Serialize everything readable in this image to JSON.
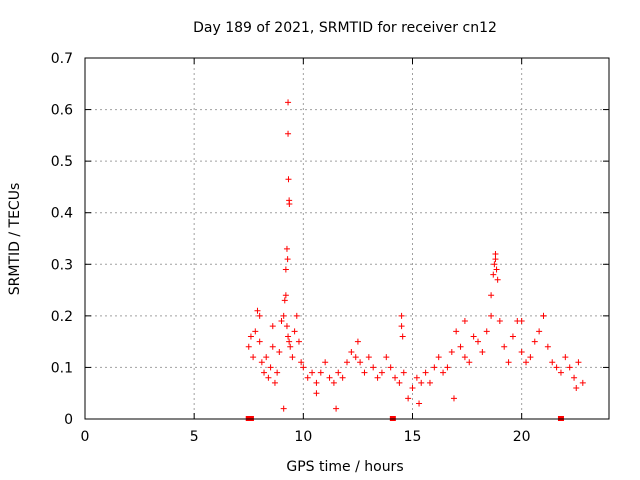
{
  "chart_data": {
    "type": "scatter",
    "title": "Day 189 of 2021, SRMTID for receiver cn12",
    "xlabel": "GPS time / hours",
    "ylabel": "SRMTID / TECUs",
    "xlim": [
      0,
      24
    ],
    "ylim": [
      0,
      0.7
    ],
    "xticks": [
      0,
      5,
      10,
      15,
      20
    ],
    "yticks": [
      0,
      0.1,
      0.2,
      0.3,
      0.4,
      0.5,
      0.6,
      0.7
    ],
    "xtick_labels": [
      "0",
      "5",
      "10",
      "15",
      "20"
    ],
    "ytick_labels": [
      "0",
      "0.1",
      "0.2",
      "0.3",
      "0.4",
      "0.5",
      "0.6",
      "0.7"
    ],
    "grid": true,
    "marker": "+",
    "color": "#ff0000",
    "series": [
      {
        "name": "SRMTID",
        "x": [
          7.5,
          7.6,
          7.7,
          7.8,
          7.9,
          8.0,
          8.1,
          8.2,
          8.3,
          8.4,
          8.5,
          8.6,
          8.7,
          8.8,
          8.9,
          9.0,
          9.1,
          9.15,
          9.2,
          9.25,
          9.3,
          9.35,
          9.4,
          9.5,
          9.6,
          9.7,
          9.8,
          9.9,
          10.0,
          10.2,
          10.4,
          10.6,
          10.8,
          11.0,
          11.2,
          11.4,
          11.6,
          11.8,
          12.0,
          12.2,
          12.4,
          12.6,
          12.8,
          13.0,
          13.2,
          13.4,
          13.6,
          13.8,
          14.0,
          14.2,
          14.4,
          14.5,
          14.6,
          14.8,
          15.0,
          15.2,
          15.4,
          15.6,
          15.8,
          16.0,
          16.2,
          16.4,
          16.6,
          16.8,
          17.0,
          17.2,
          17.4,
          17.6,
          17.8,
          18.0,
          18.2,
          18.4,
          18.6,
          18.7,
          18.8,
          18.9,
          19.0,
          19.2,
          19.4,
          19.6,
          19.8,
          20.0,
          20.2,
          20.4,
          20.6,
          20.8,
          21.0,
          21.2,
          21.4,
          21.6,
          21.8,
          22.0,
          22.2,
          22.4,
          22.6,
          22.8,
          9.3,
          9.3,
          9.32,
          9.35,
          9.36,
          9.25,
          9.2,
          9.28,
          8.0,
          9.1,
          18.8,
          18.75,
          18.85,
          18.6,
          14.5,
          14.55,
          17.4,
          21.0,
          20.0,
          16.9,
          11.5,
          10.6,
          22.5,
          15.3,
          8.6,
          12.5
        ],
        "y": [
          0.14,
          0.16,
          0.12,
          0.17,
          0.21,
          0.15,
          0.11,
          0.09,
          0.12,
          0.08,
          0.1,
          0.14,
          0.07,
          0.09,
          0.13,
          0.19,
          0.2,
          0.23,
          0.24,
          0.18,
          0.16,
          0.15,
          0.14,
          0.12,
          0.17,
          0.2,
          0.15,
          0.11,
          0.1,
          0.08,
          0.09,
          0.07,
          0.09,
          0.11,
          0.08,
          0.07,
          0.09,
          0.08,
          0.11,
          0.13,
          0.12,
          0.11,
          0.09,
          0.12,
          0.1,
          0.08,
          0.09,
          0.12,
          0.1,
          0.08,
          0.07,
          0.18,
          0.09,
          0.04,
          0.06,
          0.08,
          0.07,
          0.09,
          0.07,
          0.1,
          0.12,
          0.09,
          0.1,
          0.13,
          0.17,
          0.14,
          0.12,
          0.11,
          0.16,
          0.15,
          0.13,
          0.17,
          0.2,
          0.28,
          0.31,
          0.27,
          0.19,
          0.14,
          0.11,
          0.16,
          0.19,
          0.13,
          0.11,
          0.12,
          0.15,
          0.17,
          0.2,
          0.14,
          0.11,
          0.1,
          0.09,
          0.12,
          0.1,
          0.08,
          0.11,
          0.07,
          0.614,
          0.553,
          0.465,
          0.424,
          0.417,
          0.33,
          0.29,
          0.31,
          0.2,
          0.02,
          0.32,
          0.3,
          0.29,
          0.24,
          0.2,
          0.16,
          0.19,
          0.2,
          0.19,
          0.04,
          0.02,
          0.05,
          0.06,
          0.03,
          0.18,
          0.15
        ]
      }
    ],
    "gap_markers_x": [
      7.5,
      7.6,
      14.1,
      21.8
    ]
  }
}
